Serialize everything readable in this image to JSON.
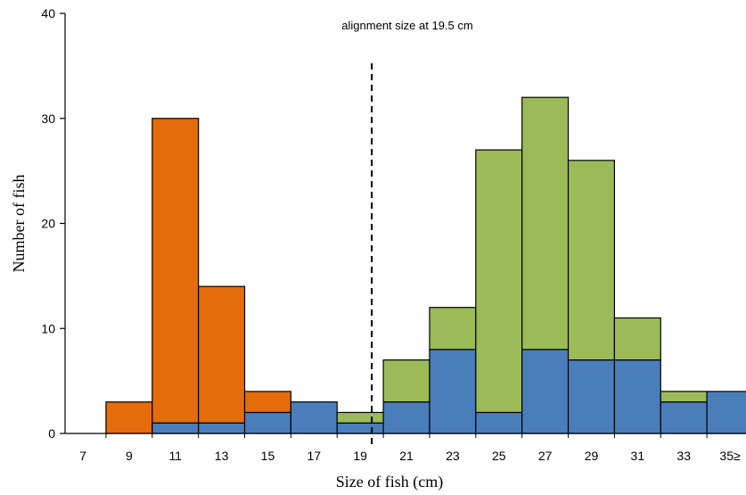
{
  "chart_data": {
    "type": "bar",
    "stacked": true,
    "xlabel": "Size of fish (cm)",
    "ylabel": "Number of fish",
    "ylim": [
      0,
      40
    ],
    "yticks": [
      0,
      10,
      20,
      30,
      40
    ],
    "categories": [
      "7",
      "9",
      "11",
      "13",
      "15",
      "17",
      "19",
      "21",
      "23",
      "25",
      "27",
      "29",
      "31",
      "33",
      "35≥"
    ],
    "series": [
      {
        "color": "#4a7ebb",
        "values": [
          0,
          0,
          1,
          1,
          2,
          3,
          1,
          3,
          8,
          2,
          8,
          7,
          7,
          3,
          4
        ]
      },
      {
        "color": "#e46c0a",
        "values": [
          0,
          3,
          29,
          13,
          2,
          0,
          0,
          0,
          0,
          0,
          0,
          0,
          0,
          0,
          0
        ]
      },
      {
        "color": "#9bbb59",
        "values": [
          0,
          0,
          0,
          0,
          0,
          0,
          1,
          4,
          4,
          25,
          24,
          19,
          4,
          1,
          0
        ]
      }
    ],
    "reference_line": {
      "x": 19.5,
      "style": "dashed",
      "label": "alignment size at 19.5 cm"
    },
    "grid": false,
    "legend": "none"
  }
}
